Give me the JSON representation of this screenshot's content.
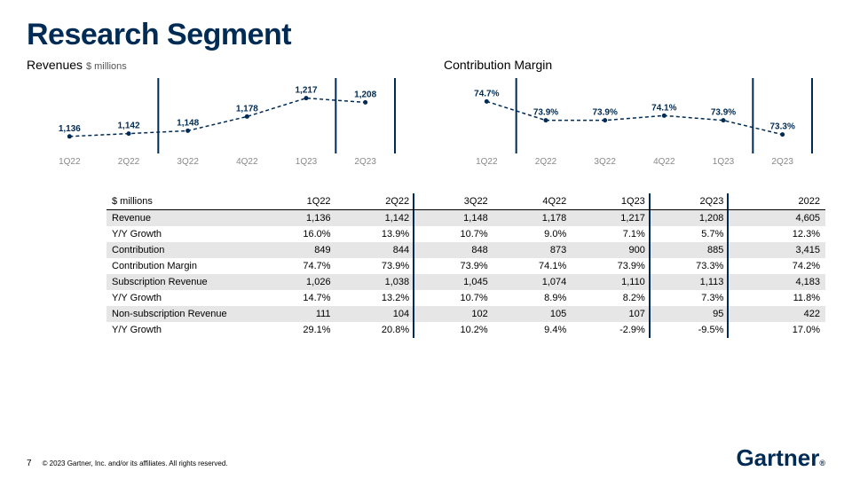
{
  "title": "Research Segment",
  "chart1": {
    "title": "Revenues",
    "subtitle": "$ millions",
    "type": "line",
    "categories": [
      "1Q22",
      "2Q22",
      "3Q22",
      "4Q22",
      "1Q23",
      "2Q23"
    ],
    "values": [
      1136,
      1142,
      1148,
      1178,
      1217,
      1208
    ],
    "labels": [
      "1,136",
      "1,142",
      "1,148",
      "1,178",
      "1,217",
      "1,208"
    ],
    "ylim": [
      1100,
      1250
    ],
    "line_color": "#002b54",
    "dash": "4 3",
    "separators_after_index": [
      1,
      4,
      5
    ]
  },
  "chart2": {
    "title": "Contribution Margin",
    "subtitle": "",
    "type": "line",
    "categories": [
      "1Q22",
      "2Q22",
      "3Q22",
      "4Q22",
      "1Q23",
      "2Q23"
    ],
    "values": [
      74.7,
      73.9,
      73.9,
      74.1,
      73.9,
      73.3
    ],
    "labels": [
      "74.7%",
      "73.9%",
      "73.9%",
      "74.1%",
      "73.9%",
      "73.3%"
    ],
    "ylim": [
      72.5,
      75.5
    ],
    "line_color": "#002b54",
    "dash": "4 3",
    "separators_after_index": [
      0,
      4,
      5
    ]
  },
  "table": {
    "header_label": "$ millions",
    "columns": [
      "1Q22",
      "2Q22",
      "3Q22",
      "4Q22",
      "1Q23",
      "2Q23",
      "2022"
    ],
    "rows": [
      {
        "label": "Revenue",
        "shade": true,
        "cells": [
          "1,136",
          "1,142",
          "1,148",
          "1,178",
          "1,217",
          "1,208",
          "4,605"
        ]
      },
      {
        "label": "Y/Y Growth",
        "shade": false,
        "cells": [
          "16.0%",
          "13.9%",
          "10.7%",
          "9.0%",
          "7.1%",
          "5.7%",
          "12.3%"
        ]
      },
      {
        "label": "Contribution",
        "shade": true,
        "cells": [
          "849",
          "844",
          "848",
          "873",
          "900",
          "885",
          "3,415"
        ]
      },
      {
        "label": "Contribution Margin",
        "shade": false,
        "cells": [
          "74.7%",
          "73.9%",
          "73.9%",
          "74.1%",
          "73.9%",
          "73.3%",
          "74.2%"
        ]
      },
      {
        "label": "Subscription Revenue",
        "shade": true,
        "cells": [
          "1,026",
          "1,038",
          "1,045",
          "1,074",
          "1,110",
          "1,113",
          "4,183"
        ]
      },
      {
        "label": "Y/Y Growth",
        "shade": false,
        "cells": [
          "14.7%",
          "13.2%",
          "10.7%",
          "8.9%",
          "8.2%",
          "7.3%",
          "11.8%"
        ]
      },
      {
        "label": "Non-subscription Revenue",
        "shade": true,
        "cells": [
          "111",
          "104",
          "102",
          "105",
          "107",
          "95",
          "422"
        ]
      },
      {
        "label": "Y/Y Growth",
        "shade": false,
        "cells": [
          "29.1%",
          "20.8%",
          "10.2%",
          "9.4%",
          "-2.9%",
          "-9.5%",
          "17.0%"
        ]
      }
    ],
    "vline_after_col": [
      1,
      4,
      5
    ]
  },
  "footer": {
    "page": "7",
    "copyright": "© 2023 Gartner, Inc. and/or its affiliates. All rights reserved."
  },
  "brand": "Gartner",
  "colors": {
    "navy": "#002b54",
    "shade": "#e6e6e6"
  }
}
